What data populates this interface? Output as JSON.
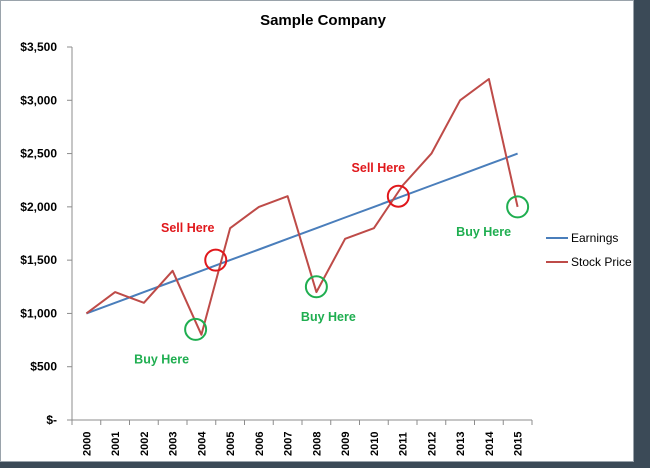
{
  "colors": {
    "earnings": "#4a7ebb",
    "stock_price": "#be4b48",
    "sell": "#e0171b",
    "buy": "#1fae50",
    "axis": "#8c8c8c"
  },
  "chart_data": {
    "type": "line",
    "title": "Sample Company",
    "xlabel": "",
    "ylabel": "",
    "categories": [
      "2000",
      "2001",
      "2002",
      "2003",
      "2004",
      "2005",
      "2006",
      "2007",
      "2008",
      "2009",
      "2010",
      "2011",
      "2012",
      "2013",
      "2014",
      "2015"
    ],
    "ylim": [
      0,
      3500
    ],
    "ytick_values": [
      0,
      500,
      1000,
      1500,
      2000,
      2500,
      3000,
      3500
    ],
    "ytick_labels": [
      "$-",
      "$500",
      "$1,000",
      "$1,500",
      "$2,000",
      "$2,500",
      "$3,000",
      "$3,500"
    ],
    "grid": false,
    "legend_position": "right",
    "series": [
      {
        "name": "Earnings",
        "color": "#4a7ebb",
        "values": [
          1000,
          1100,
          1200,
          1300,
          1400,
          1500,
          1600,
          1700,
          1800,
          1900,
          2000,
          2100,
          2200,
          2300,
          2400,
          2500
        ]
      },
      {
        "name": "Stock Price",
        "color": "#be4b48",
        "values": [
          1000,
          1200,
          1100,
          1400,
          800,
          1800,
          2000,
          2100,
          1200,
          1700,
          1800,
          2200,
          2500,
          3000,
          3200,
          2000
        ]
      }
    ],
    "annotations": [
      {
        "text": "Sell Here",
        "kind": "sell",
        "x": 4.5,
        "y": 1500
      },
      {
        "text": "Sell Here",
        "kind": "sell",
        "x": 10.85,
        "y": 2100
      },
      {
        "text": "Buy Here",
        "kind": "buy",
        "x": 3.8,
        "y": 850
      },
      {
        "text": "Buy Here",
        "kind": "buy",
        "x": 8.0,
        "y": 1250
      },
      {
        "text": "Buy Here",
        "kind": "buy",
        "x": 15.0,
        "y": 2000
      }
    ]
  }
}
